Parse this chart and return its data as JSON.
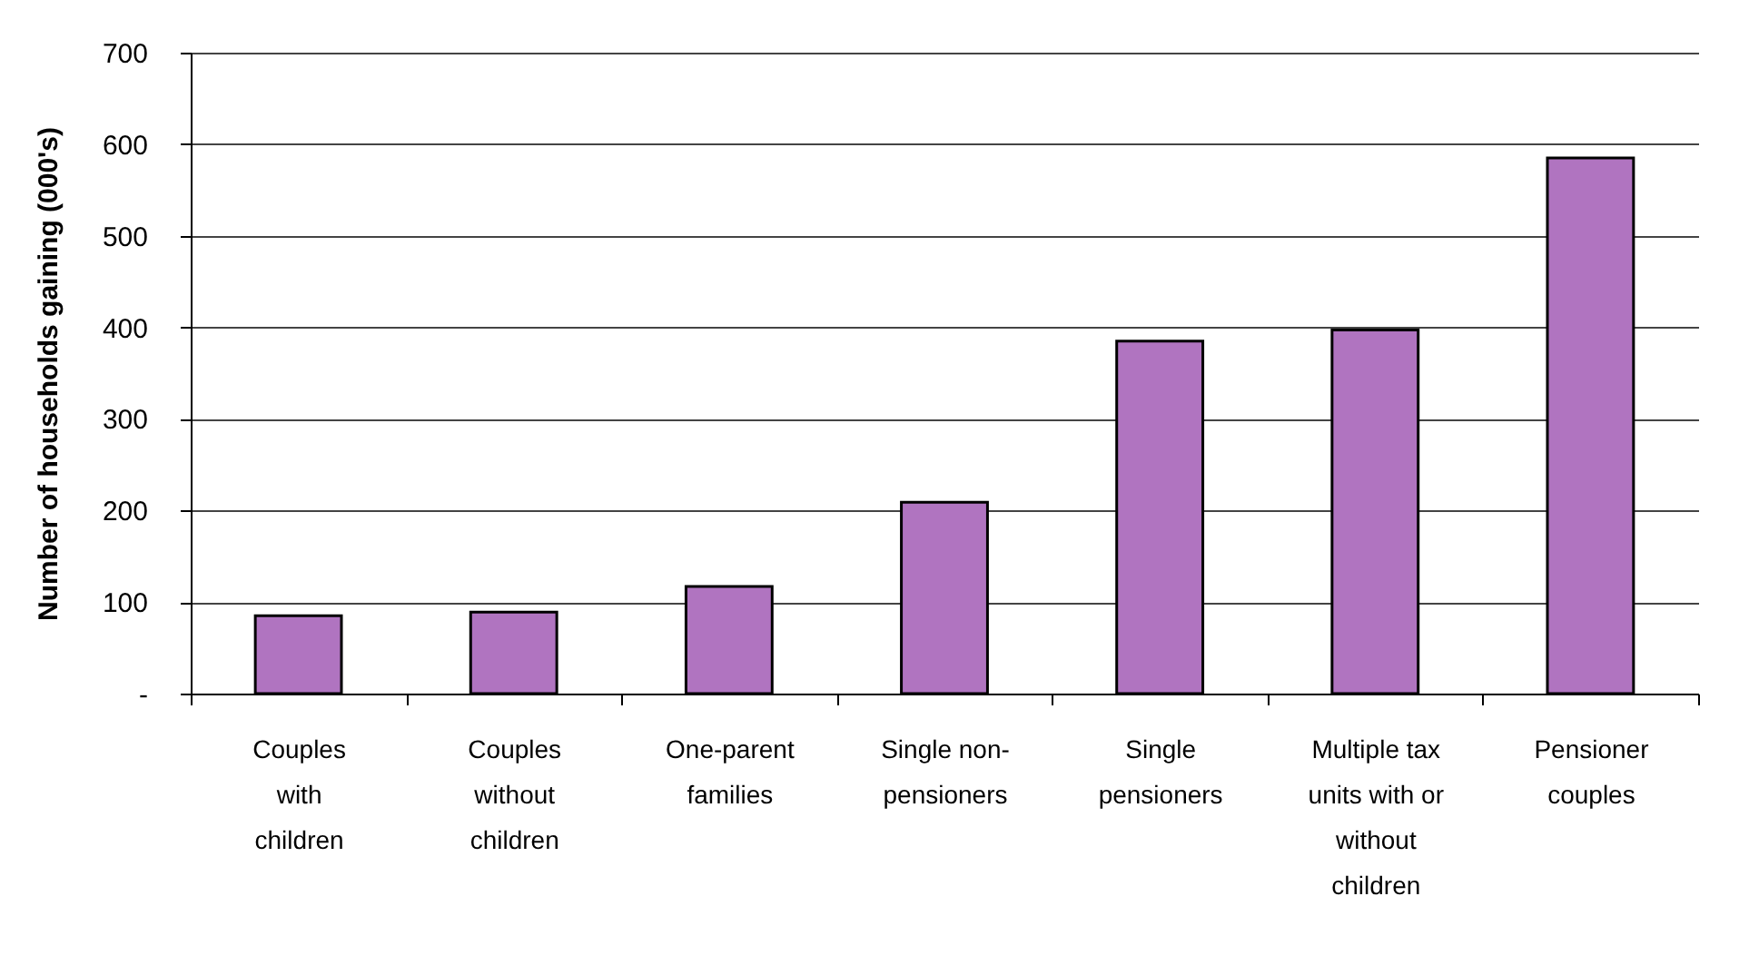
{
  "chart_data": {
    "type": "bar",
    "ylabel": "Number of households gaining (000's)",
    "categories": [
      "Couples with children",
      "Couples without children",
      "One-parent families",
      "Single non-pensioners",
      "Single pensioners",
      "Multiple tax units with or without children",
      "Pensioner couples"
    ],
    "values": [
      85,
      89,
      117,
      209,
      385,
      397,
      585
    ],
    "color": "#b074c0",
    "ylim": [
      0,
      700
    ],
    "yticks": [
      {
        "value": 0,
        "label": "-"
      },
      100,
      200,
      300,
      400,
      500,
      600,
      700
    ],
    "grid": "y"
  }
}
